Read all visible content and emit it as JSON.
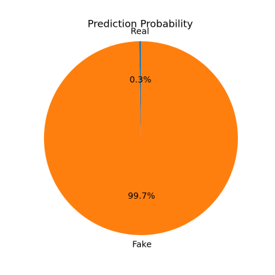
{
  "chart_data": {
    "type": "pie",
    "title": "Prediction Probability",
    "labels": [
      "Real",
      "Fake"
    ],
    "values": [
      0.3,
      99.7
    ],
    "percent_labels": [
      "0.3%",
      "99.7%"
    ],
    "colors": [
      "#1f77b4",
      "#ff7f0e"
    ],
    "start_angle": 90,
    "direction": "counterclockwise"
  }
}
